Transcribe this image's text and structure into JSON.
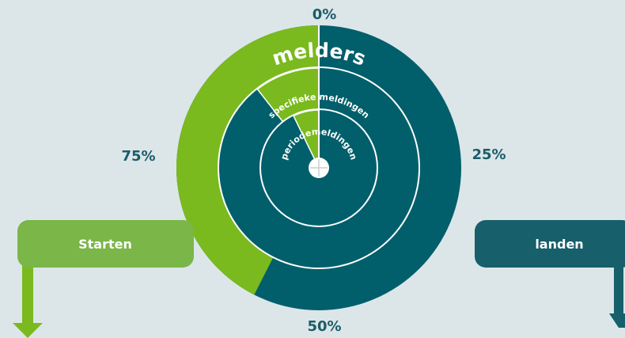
{
  "percent_labels": [
    "0%",
    "25%",
    "50%",
    "75%"
  ],
  "rings": [
    "melders",
    "specifieke meldingen",
    "periodemeldingen"
  ],
  "buttons": [
    "Starten",
    "landen"
  ]
}
